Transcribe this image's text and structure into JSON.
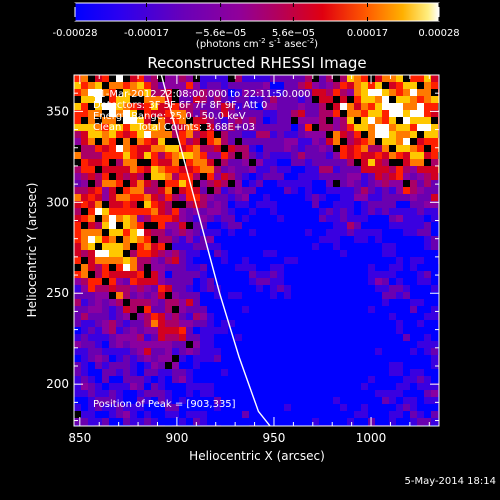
{
  "colorbar": {
    "ticks": [
      "-0.00028",
      "-0.00017",
      "−5.6e−05",
      "5.6e−05",
      "0.00017",
      "0.00028"
    ],
    "unit_main": "(photons cm",
    "unit_exp1": "-2",
    "unit_mid1": " s",
    "unit_exp2": "-1",
    "unit_mid2": " asec",
    "unit_exp3": "-2",
    "unit_end": ")"
  },
  "chart_data": {
    "type": "heatmap",
    "title": "Reconstructed RHESSI Image",
    "xlabel": "Heliocentric X (arcsec)",
    "ylabel": "Heliocentric Y (arcsec)",
    "xlim": [
      847,
      1035
    ],
    "ylim": [
      177,
      370
    ],
    "xticks": [
      850,
      900,
      950,
      1000
    ],
    "yticks": [
      200,
      250,
      300,
      350
    ],
    "value_range": [
      -0.00028,
      0.00028
    ],
    "limb_curve": {
      "x": [
        892,
        902,
        912,
        922,
        932,
        942,
        948
      ],
      "y": [
        370,
        330,
        290,
        250,
        215,
        185,
        177
      ]
    },
    "annotations": [
      "21-Mar-2012 22:08:00.000 to 22:11:50.000",
      "Detectors: 3F 5F 6F 7F 8F 9F, Att 0",
      "Energy Range: 25.0 - 50.0 keV",
      "Clean     Total Counts: 3.68E+03"
    ],
    "peak_label": "Position of Peak = [903,335]"
  },
  "footer": {
    "timestamp": "5-May-2014 18:14"
  },
  "colors": {
    "background": "#000000",
    "axis": "#ffffff",
    "cmap": [
      "#0000ff",
      "#3a00e0",
      "#6a00b0",
      "#8a00a0",
      "#aa0066",
      "#d20020",
      "#ff2000",
      "#ff7a00",
      "#ffc800",
      "#ffffff"
    ]
  }
}
